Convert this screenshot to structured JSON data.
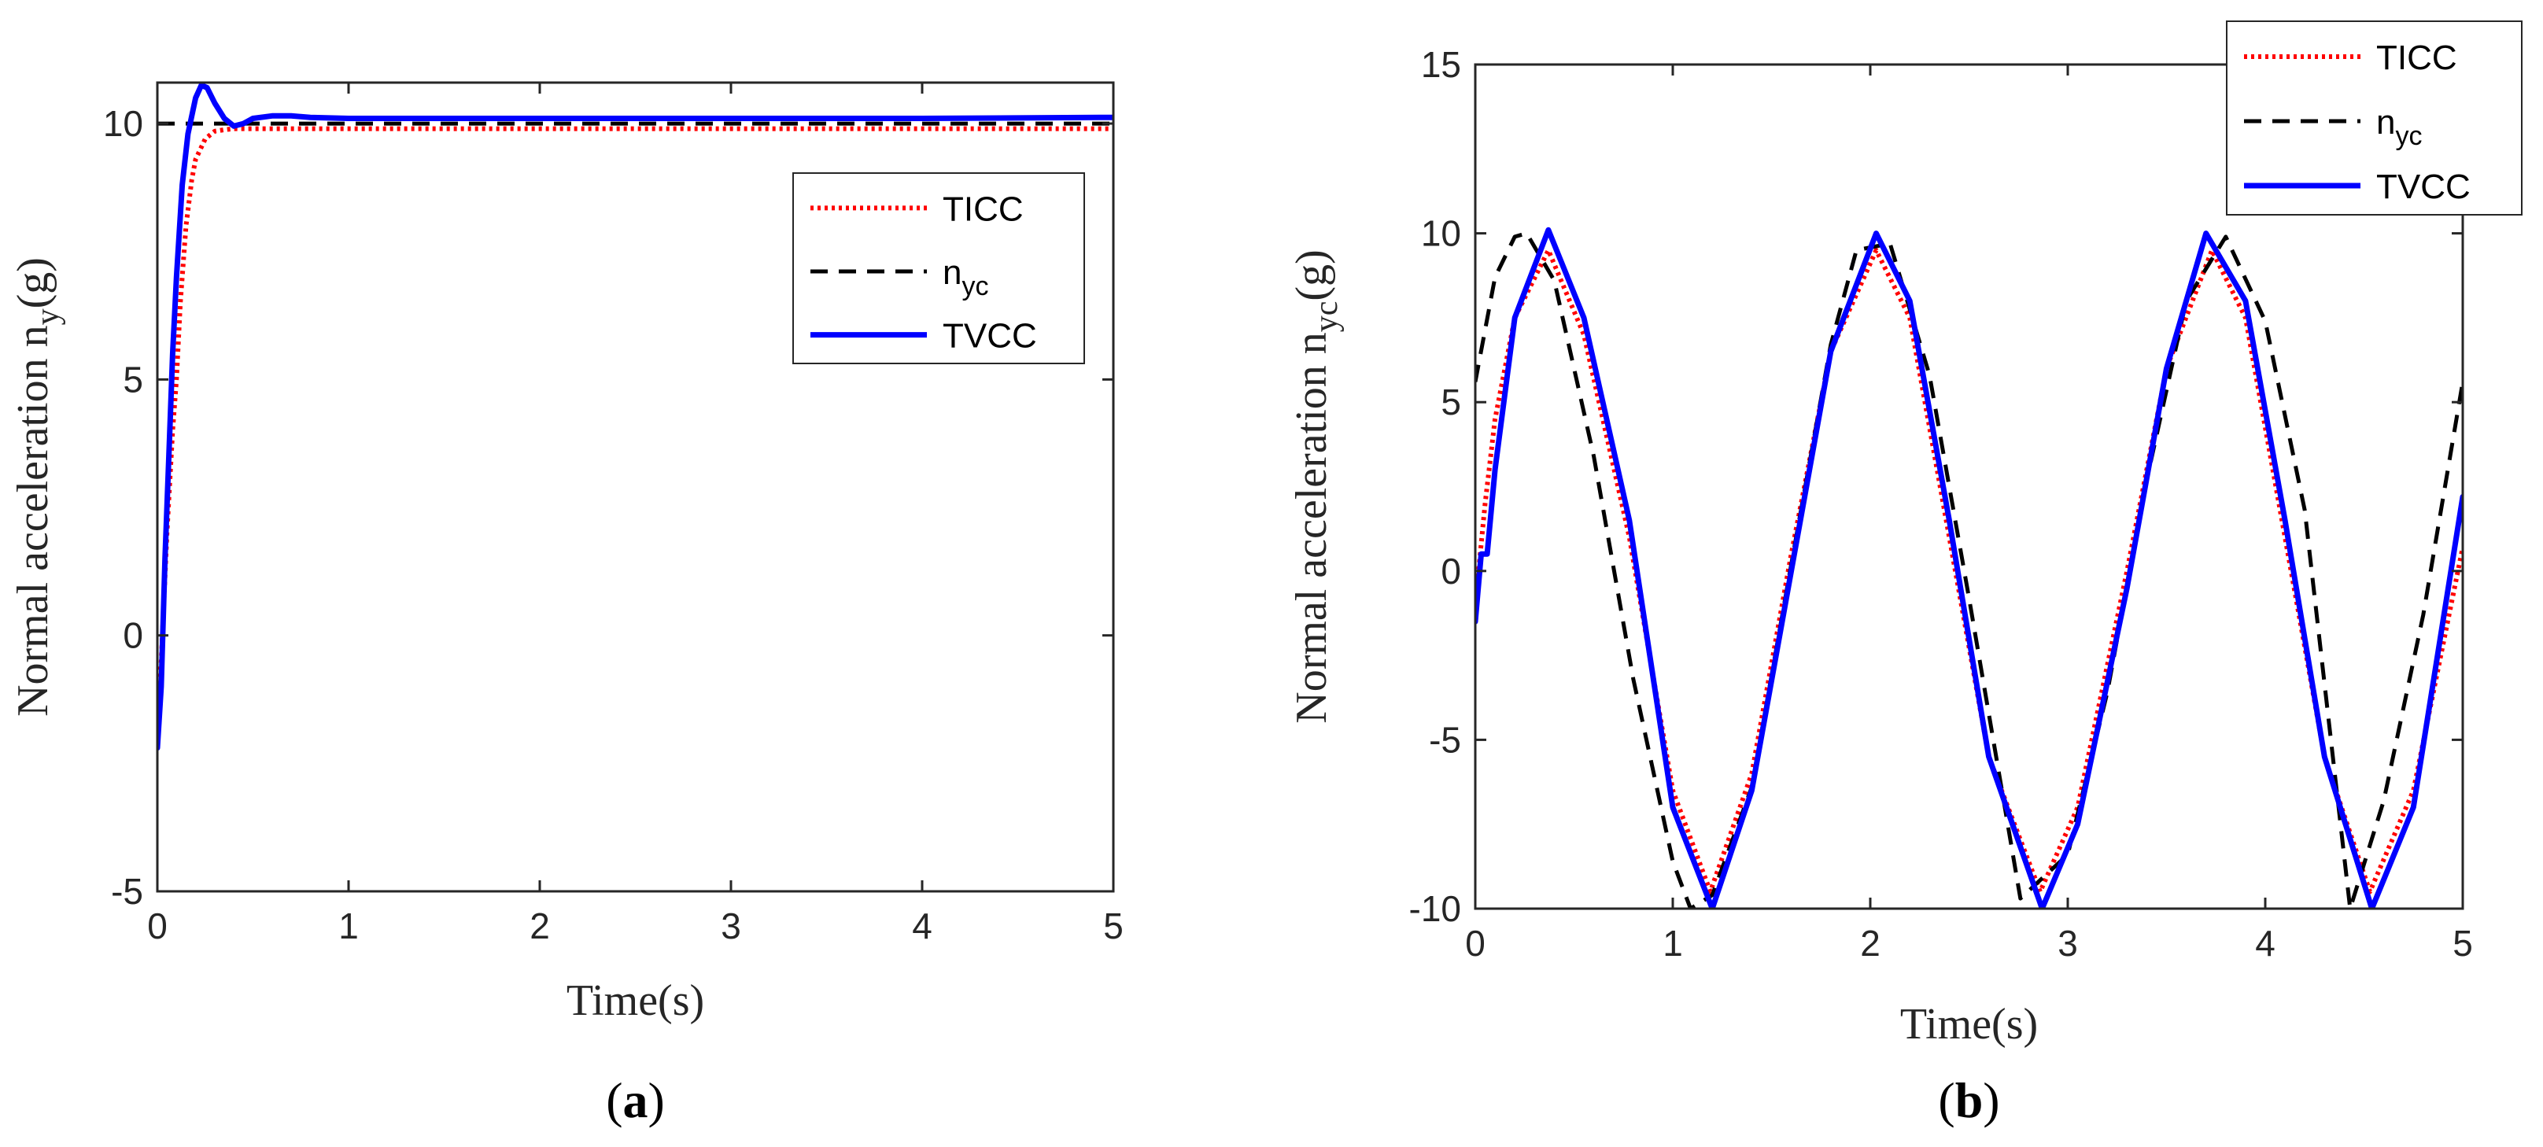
{
  "colors": {
    "TICC": "#ff0000",
    "nyc": "#000000",
    "TVCC": "#0000ff",
    "axis": "#262626",
    "legend_border": "#262626"
  },
  "chart_data": [
    {
      "id": "a",
      "panel_label": "a",
      "type": "line",
      "xlabel": "Time(s)",
      "ylabel_main": "Normal acceleration n",
      "ylabel_sub": "y",
      "ylabel_tail": "(g)",
      "xlim": [
        0,
        5
      ],
      "ylim": [
        -5,
        10.8
      ],
      "xticks": [
        0,
        1,
        2,
        3,
        4,
        5
      ],
      "yticks": [
        -5,
        0,
        5,
        10
      ],
      "grid": false,
      "legend_position": "top-right",
      "series": [
        {
          "name": "TICC",
          "legend_main": "TICC",
          "legend_sub": "",
          "style": "dotted",
          "x": [
            0,
            0.02,
            0.05,
            0.08,
            0.1,
            0.12,
            0.15,
            0.18,
            0.2,
            0.25,
            0.3,
            0.35,
            0.4,
            0.5,
            0.7,
            1,
            2,
            3,
            4,
            5
          ],
          "y": [
            -1.5,
            -0.5,
            2.0,
            4.0,
            5.0,
            6.5,
            8.0,
            8.9,
            9.3,
            9.7,
            9.85,
            9.88,
            9.9,
            9.9,
            9.9,
            9.9,
            9.9,
            9.9,
            9.9,
            9.9
          ]
        },
        {
          "name": "n_yc",
          "legend_main": "n",
          "legend_sub": "yc",
          "style": "dashed",
          "x": [
            0,
            5
          ],
          "y": [
            10,
            10
          ]
        },
        {
          "name": "TVCC",
          "legend_main": "TVCC",
          "legend_sub": "",
          "style": "solid",
          "x": [
            0,
            0.02,
            0.04,
            0.06,
            0.08,
            0.1,
            0.13,
            0.16,
            0.2,
            0.23,
            0.26,
            0.3,
            0.35,
            0.4,
            0.45,
            0.5,
            0.6,
            0.7,
            0.8,
            1,
            2,
            3,
            4,
            5
          ],
          "y": [
            -2.2,
            -1.0,
            1.5,
            3.5,
            5.5,
            7.0,
            8.8,
            9.8,
            10.5,
            10.75,
            10.7,
            10.4,
            10.1,
            9.95,
            10.0,
            10.1,
            10.15,
            10.15,
            10.12,
            10.1,
            10.1,
            10.1,
            10.1,
            10.12
          ]
        }
      ]
    },
    {
      "id": "b",
      "panel_label": "b",
      "type": "line",
      "xlabel": "Time(s)",
      "ylabel_main": "Normal acceleration n",
      "ylabel_sub": "yc",
      "ylabel_tail": "(g)",
      "xlim": [
        0,
        5
      ],
      "ylim": [
        -10,
        15
      ],
      "xticks": [
        0,
        1,
        2,
        3,
        4,
        5
      ],
      "yticks": [
        -10,
        -5,
        0,
        5,
        10,
        15
      ],
      "grid": false,
      "legend_position": "top-right",
      "series": [
        {
          "name": "TICC",
          "legend_main": "TICC",
          "legend_sub": "",
          "style": "dotted",
          "x": [
            0,
            0.05,
            0.1,
            0.2,
            0.37,
            0.55,
            0.78,
            1.0,
            1.19,
            1.4,
            1.6,
            1.8,
            2.03,
            2.2,
            2.4,
            2.6,
            2.86,
            3.05,
            3.3,
            3.5,
            3.73,
            3.9,
            4.1,
            4.3,
            4.53,
            4.75,
            5.0
          ],
          "y": [
            -1.0,
            2.0,
            4.5,
            7.5,
            9.5,
            7.0,
            1.0,
            -6.5,
            -9.5,
            -6.0,
            0.5,
            6.5,
            9.5,
            7.5,
            1.0,
            -5.5,
            -9.5,
            -7.0,
            0.0,
            6.0,
            9.5,
            7.5,
            1.0,
            -5.5,
            -9.5,
            -6.5,
            0.7
          ]
        },
        {
          "name": "n_yc",
          "legend_main": "n",
          "legend_sub": "yc",
          "style": "dashed",
          "formula": "10*sin(2*pi*t/1.6667 + 0.6)",
          "x": [
            0,
            0.1,
            0.2,
            0.26,
            0.4,
            0.6,
            0.8,
            1.0,
            1.09,
            1.2,
            1.4,
            1.6,
            1.8,
            1.93,
            2.1,
            2.3,
            2.5,
            2.76,
            3.0,
            3.2,
            3.4,
            3.6,
            3.8,
            4.0,
            4.2,
            4.43,
            4.6,
            4.8,
            5.0
          ],
          "y": [
            5.6,
            8.7,
            9.9,
            10,
            8.6,
            3.4,
            -3.2,
            -8.6,
            -10,
            -9.6,
            -6.4,
            0.2,
            6.7,
            9.5,
            9.7,
            5.8,
            -0.8,
            -9.7,
            -8.4,
            -3.6,
            2.7,
            8.0,
            9.9,
            7.4,
            1.8,
            -10,
            -6.8,
            -1.3,
            5.6
          ]
        },
        {
          "name": "TVCC",
          "legend_main": "TVCC",
          "legend_sub": "",
          "style": "solid",
          "x": [
            0,
            0.03,
            0.06,
            0.1,
            0.2,
            0.37,
            0.55,
            0.78,
            1.0,
            1.2,
            1.4,
            1.6,
            1.8,
            2.03,
            2.2,
            2.4,
            2.6,
            2.87,
            3.05,
            3.3,
            3.5,
            3.7,
            3.9,
            4.1,
            4.3,
            4.54,
            4.75,
            5.0
          ],
          "y": [
            -1.5,
            0.5,
            0.5,
            3.0,
            7.5,
            10.1,
            7.5,
            1.5,
            -7.0,
            -10,
            -6.5,
            0.0,
            6.5,
            10.0,
            8.0,
            1.5,
            -5.5,
            -10,
            -7.5,
            -0.5,
            6.0,
            10.0,
            8.0,
            1.5,
            -5.5,
            -10,
            -7.0,
            2.2
          ]
        }
      ]
    }
  ]
}
